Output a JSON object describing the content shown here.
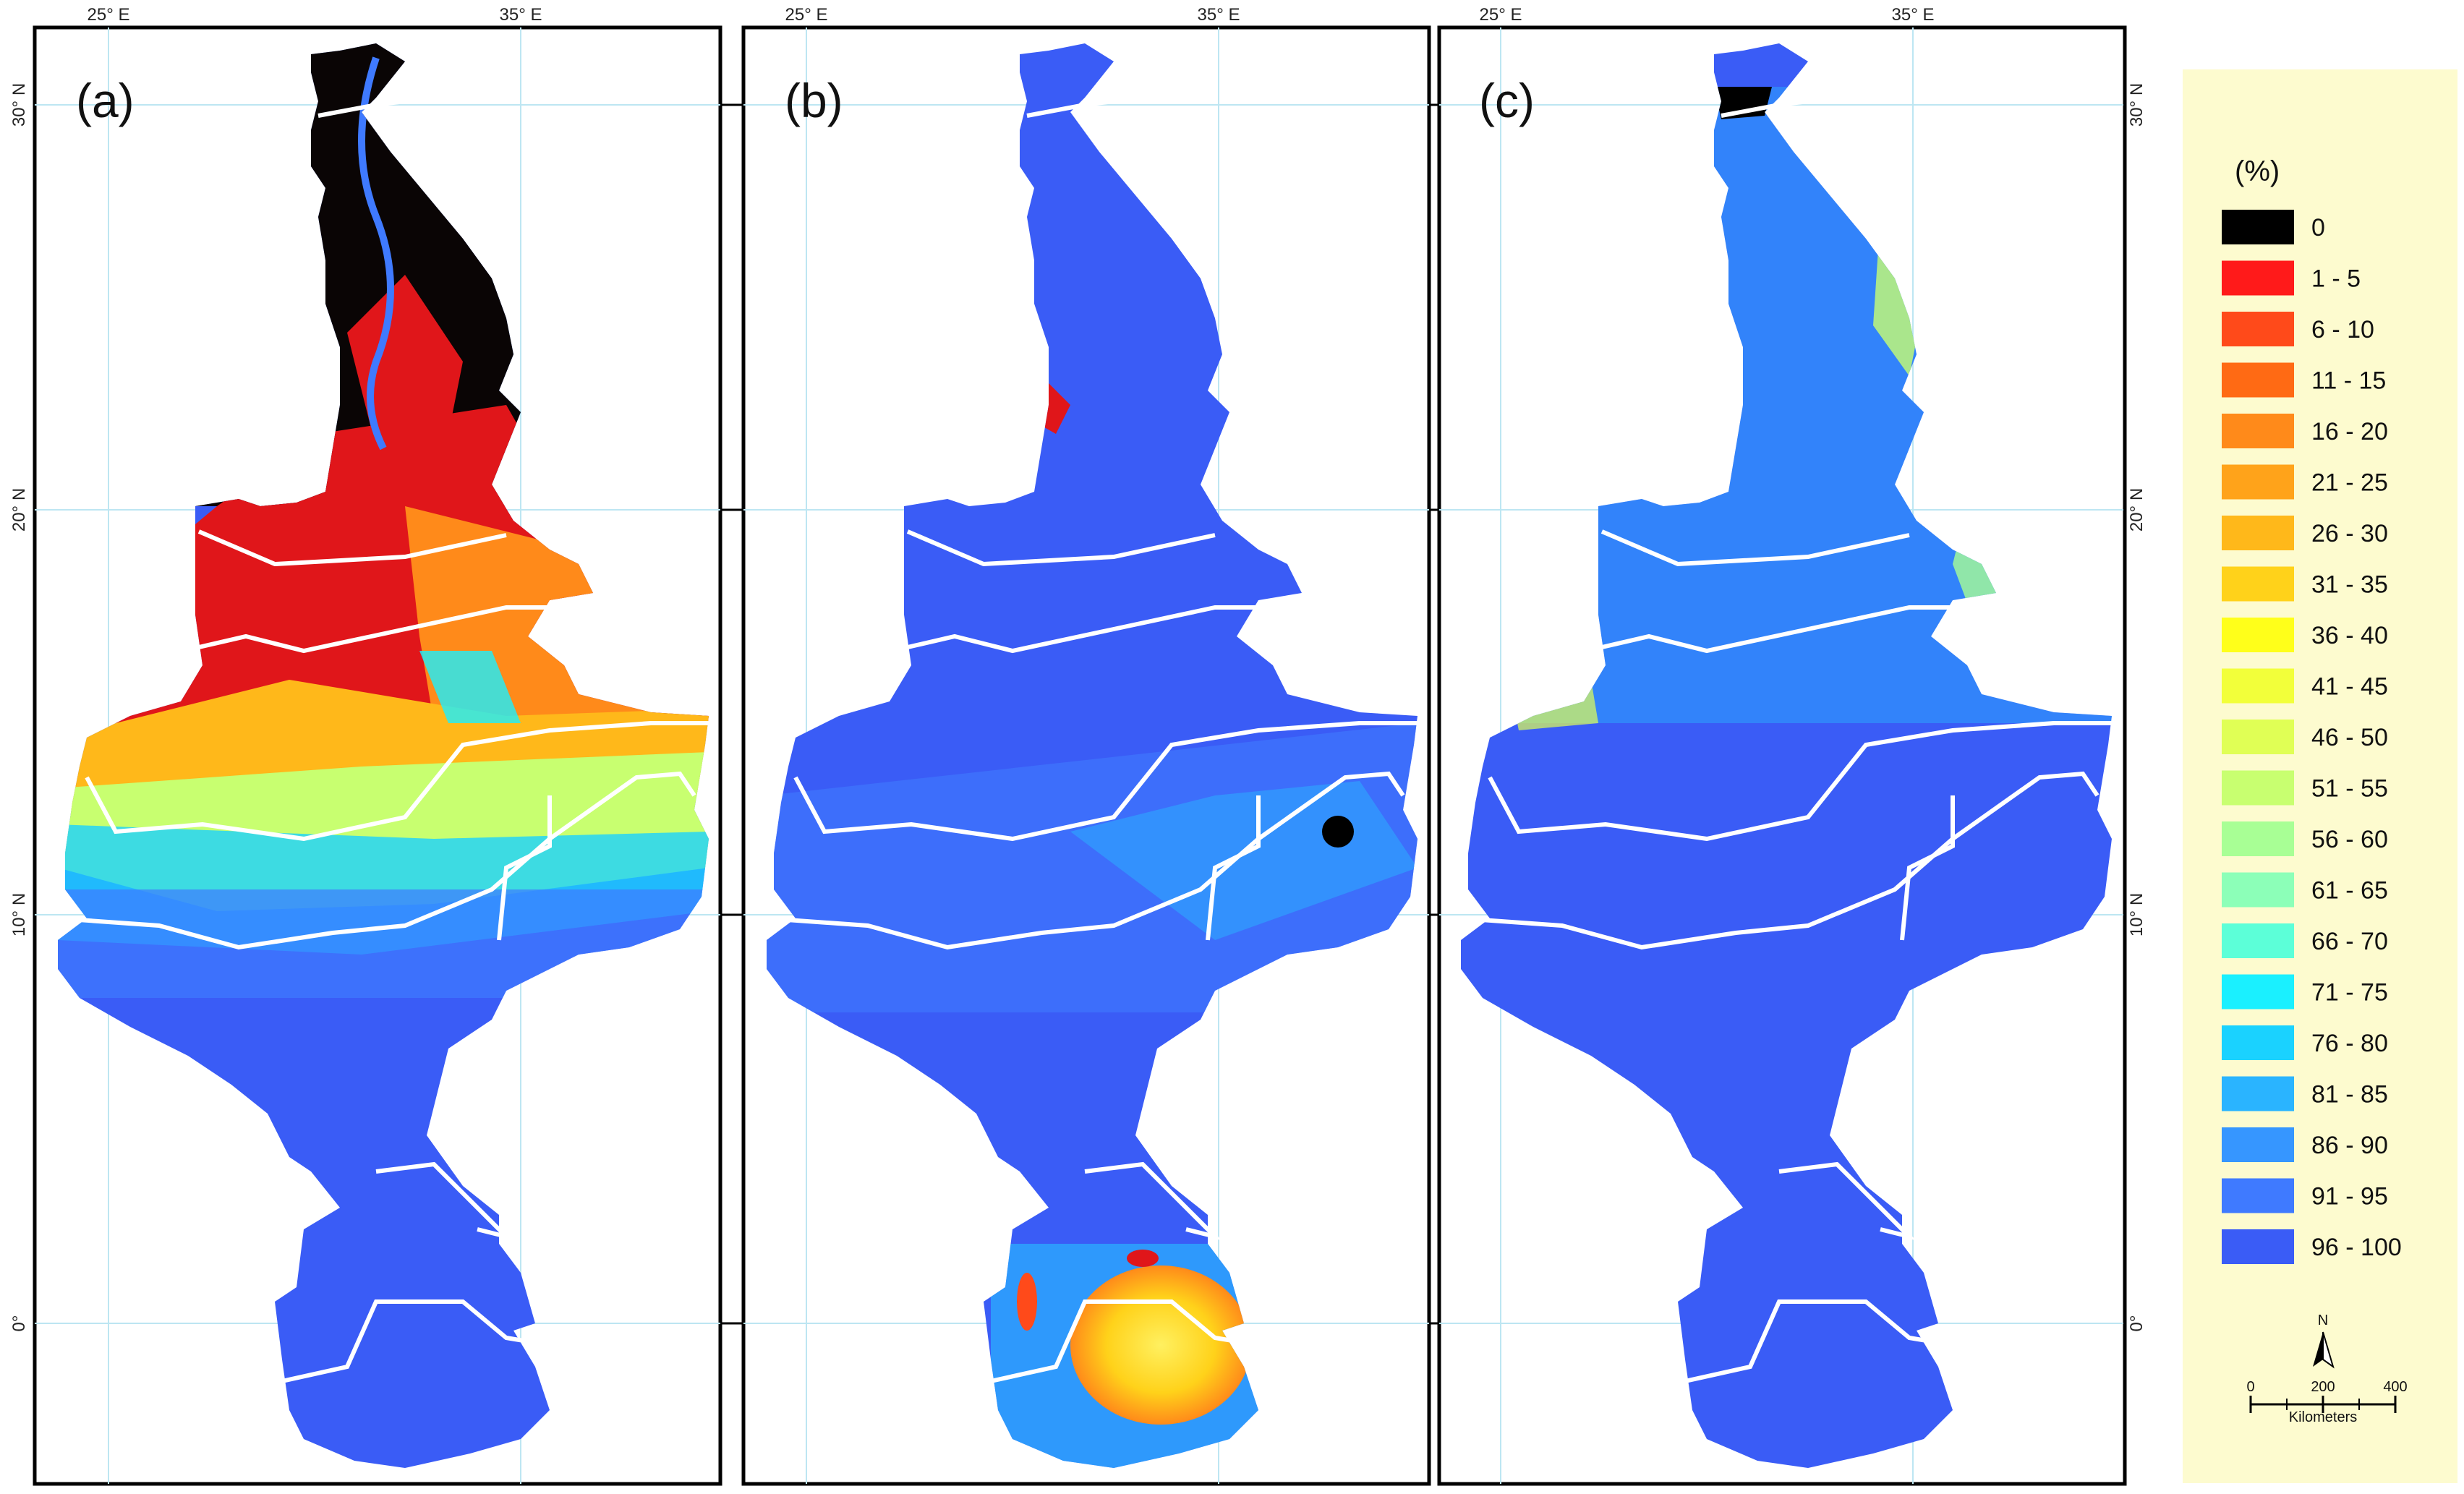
{
  "figure": {
    "panels": [
      {
        "label": "(a)"
      },
      {
        "label": "(b)"
      },
      {
        "label": "(c)"
      }
    ],
    "lon_ticks": [
      "25° E",
      "35° E"
    ],
    "lat_ticks": [
      "30° N",
      "20° N",
      "10° N",
      "0°"
    ]
  },
  "legend": {
    "title": "(%)",
    "classes": [
      {
        "label": "0",
        "color": "#000000"
      },
      {
        "label": "1 - 5",
        "color": "#ff1a1a"
      },
      {
        "label": "6 - 10",
        "color": "#ff4a1a"
      },
      {
        "label": "11 - 15",
        "color": "#ff6a14"
      },
      {
        "label": "16 - 20",
        "color": "#ff8a1a"
      },
      {
        "label": "21 - 25",
        "color": "#ffa31a"
      },
      {
        "label": "26 - 30",
        "color": "#ffb81a"
      },
      {
        "label": "31 - 35",
        "color": "#ffd21a"
      },
      {
        "label": "36 - 40",
        "color": "#ffff1a"
      },
      {
        "label": "41 - 45",
        "color": "#f2ff3a"
      },
      {
        "label": "46 - 50",
        "color": "#e0ff55"
      },
      {
        "label": "51 - 55",
        "color": "#c8ff70"
      },
      {
        "label": "56 - 60",
        "color": "#a8ff95"
      },
      {
        "label": "61 - 65",
        "color": "#8cffb8"
      },
      {
        "label": "66 - 70",
        "color": "#5cffd8"
      },
      {
        "label": "71 - 75",
        "color": "#1af0ff"
      },
      {
        "label": "76 - 80",
        "color": "#1ad2ff"
      },
      {
        "label": "81 - 85",
        "color": "#2ab4ff"
      },
      {
        "label": "86 - 90",
        "color": "#3696ff"
      },
      {
        "label": "91 - 95",
        "color": "#3f7aff"
      },
      {
        "label": "96 - 100",
        "color": "#3a5cf6"
      }
    ],
    "north_arrow": "N",
    "scale_ticks": [
      "0",
      "200",
      "400"
    ],
    "scale_unit": "Kilometers",
    "background": "#fdfbcf"
  },
  "colors": {
    "base_blue": "#3a5cf6",
    "boundary": "#ffffff",
    "graticule": "#bde6f2"
  }
}
